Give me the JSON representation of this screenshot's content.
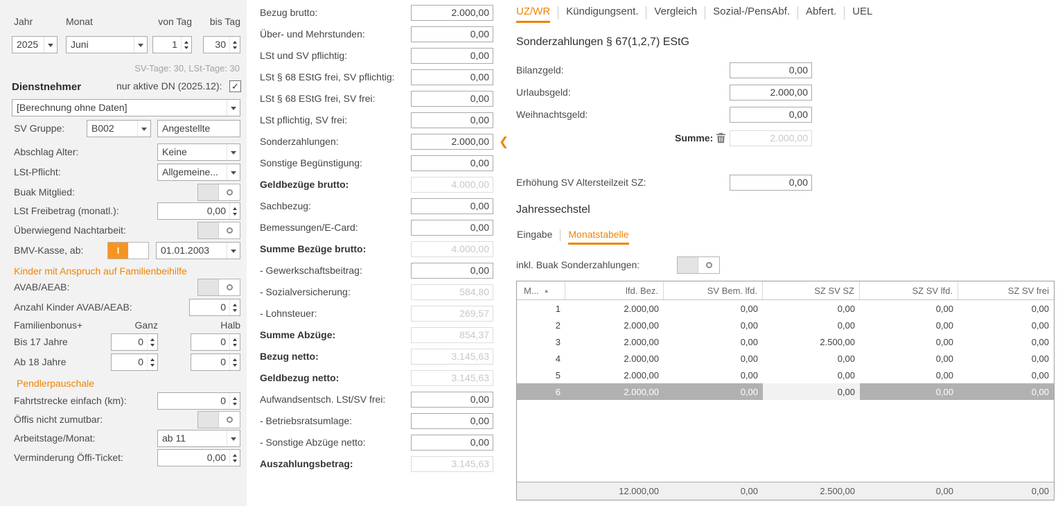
{
  "colors": {
    "accent": "#ee8400",
    "toggle_on": "#f7941e",
    "selected_row": "#b1b1b1"
  },
  "icons": {
    "checkmark": "✓",
    "sort_ascending": "▲",
    "sonderzahlungen_marker": "❮",
    "toggle_on_glyph": "I"
  },
  "left": {
    "period": {
      "jahr_label": "Jahr",
      "jahr": "2025",
      "monat_label": "Monat",
      "monat": "Juni",
      "von_tag_label": "von Tag",
      "von_tag": "1",
      "bis_tag_label": "bis Tag",
      "bis_tag": "30",
      "tage_info": "SV-Tage: 30,  LSt-Tage: 30"
    },
    "dienstnehmer": {
      "title": "Dienstnehmer",
      "active_label": "nur aktive DN (2025.12):",
      "selection": "[Berechnung ohne Daten]"
    },
    "sv_gruppe": {
      "label": "SV Gruppe:",
      "code": "B002",
      "name": "Angestellte"
    },
    "abschlag_alter": {
      "label": "Abschlag Alter:",
      "value": "Keine"
    },
    "lst_pflicht": {
      "label": "LSt-Pflicht:",
      "value": "Allgemeine..."
    },
    "buak_mitglied": {
      "label": "Buak Mitglied:"
    },
    "lst_freibetrag": {
      "label": "LSt Freibetrag (monatl.):",
      "value": "0,00"
    },
    "nachtarbeit": {
      "label": "Überwiegend Nachtarbeit:"
    },
    "bmv_kasse": {
      "label": "BMV-Kasse, ab:",
      "date": "01.01.2003"
    },
    "kinder_header": "Kinder mit Anspruch auf Familienbeihilfe",
    "avab": {
      "label": "AVAB/AEAB:"
    },
    "anzahl_kinder": {
      "label": "Anzahl Kinder AVAB/AEAB:",
      "value": "0"
    },
    "familienbonus": {
      "label": "Familienbonus+",
      "ganz_label": "Ganz",
      "halb_label": "Halb",
      "bis17": {
        "label": "Bis 17 Jahre",
        "ganz": "0",
        "halb": "0"
      },
      "ab18": {
        "label": "Ab 18 Jahre",
        "ganz": "0",
        "halb": "0"
      }
    },
    "pendler_header": "Pendlerpauschale",
    "fahrtstrecke": {
      "label": "Fahrtstrecke einfach (km):",
      "value": "0"
    },
    "oeffis": {
      "label": "Öffis nicht zumutbar:"
    },
    "arbeitstage": {
      "label": "Arbeitstage/Monat:",
      "value": "ab 11"
    },
    "verminderung": {
      "label": "Verminderung Öffi-Ticket:",
      "value": "0,00"
    }
  },
  "amounts": {
    "rows": [
      {
        "label": "Bezug brutto:",
        "value": "2.000,00"
      },
      {
        "label": "Über- und Mehrstunden:",
        "value": "0,00"
      },
      {
        "label": "LSt und SV pflichtig:",
        "value": "0,00"
      },
      {
        "label": "LSt § 68 EStG frei, SV pflichtig:",
        "value": "0,00"
      },
      {
        "label": "LSt § 68 EStG frei, SV frei:",
        "value": "0,00"
      },
      {
        "label": "LSt pflichtig, SV frei:",
        "value": "0,00"
      },
      {
        "label": "Sonderzahlungen:",
        "value": "2.000,00",
        "marker": true
      },
      {
        "label": "Sonstige Begünstigung:",
        "value": "0,00"
      },
      {
        "label": "Geldbezüge brutto:",
        "value": "4.000,00",
        "bold": true,
        "disabled": true
      },
      {
        "label": "Sachbezug:",
        "value": "0,00"
      },
      {
        "label": "Bemessungen/E-Card:",
        "value": "0,00"
      },
      {
        "label": "Summe Bezüge brutto:",
        "value": "4.000,00",
        "bold": true,
        "disabled": true
      },
      {
        "label": "- Gewerkschaftsbeitrag:",
        "value": "0,00"
      },
      {
        "label": "- Sozialversicherung:",
        "value": "584,80",
        "disabled": true
      },
      {
        "label": "- Lohnsteuer:",
        "value": "269,57",
        "disabled": true
      },
      {
        "label": "Summe Abzüge:",
        "value": "854,37",
        "bold": true,
        "disabled": true
      },
      {
        "label": "Bezug netto:",
        "value": "3.145,63",
        "bold": true,
        "disabled": true
      },
      {
        "label": "Geldbezug netto:",
        "value": "3.145,63",
        "bold": true,
        "disabled": true
      },
      {
        "label": "Aufwandsentsch. LSt/SV frei:",
        "value": "0,00"
      },
      {
        "label": "- Betriebsratsumlage:",
        "value": "0,00"
      },
      {
        "label": "- Sonstige Abzüge netto:",
        "value": "0,00"
      },
      {
        "label": "Auszahlungsbetrag:",
        "value": "3.145,63",
        "bold": true,
        "disabled": true
      }
    ]
  },
  "right": {
    "tabs": {
      "items": [
        "UZ/WR",
        "Kündigungsent.",
        "Vergleich",
        "Sozial-/PensAbf.",
        "Abfert.",
        "UEL"
      ],
      "active": 0
    },
    "sonderzahlungen": {
      "title": "Sonderzahlungen § 67(1,2,7) EStG",
      "fields": [
        {
          "label": "Bilanzgeld:",
          "value": "0,00"
        },
        {
          "label": "Urlaubsgeld:",
          "value": "2.000,00"
        },
        {
          "label": "Weihnachtsgeld:",
          "value": "0,00"
        }
      ],
      "summe_label": "Summe:",
      "summe_value": "2.000,00"
    },
    "erhoehung": {
      "label": "Erhöhung SV Altersteilzeit SZ:",
      "value": "0,00"
    },
    "jahressechstel": {
      "title": "Jahressechstel",
      "subtabs": {
        "items": [
          "Eingabe",
          "Monatstabelle"
        ],
        "active": 1
      },
      "buak_label": "inkl. Buak Sonderzahlungen:",
      "table": {
        "columns": [
          "M...",
          "lfd. Bez.",
          "SV Bem. lfd.",
          "SZ SV SZ",
          "SZ SV lfd.",
          "SZ SV frei"
        ],
        "rows": [
          [
            "1",
            "2.000,00",
            "0,00",
            "0,00",
            "0,00",
            "0,00"
          ],
          [
            "2",
            "2.000,00",
            "0,00",
            "0,00",
            "0,00",
            "0,00"
          ],
          [
            "3",
            "2.000,00",
            "0,00",
            "2.500,00",
            "0,00",
            "0,00"
          ],
          [
            "4",
            "2.000,00",
            "0,00",
            "0,00",
            "0,00",
            "0,00"
          ],
          [
            "5",
            "2.000,00",
            "0,00",
            "0,00",
            "0,00",
            "0,00"
          ],
          [
            "6",
            "2.000,00",
            "0,00",
            "0,00",
            "0,00",
            "0,00"
          ]
        ],
        "selected_row": 5,
        "focused_col": 3,
        "footer": [
          "",
          "12.000,00",
          "0,00",
          "2.500,00",
          "0,00",
          "0,00"
        ]
      }
    }
  }
}
